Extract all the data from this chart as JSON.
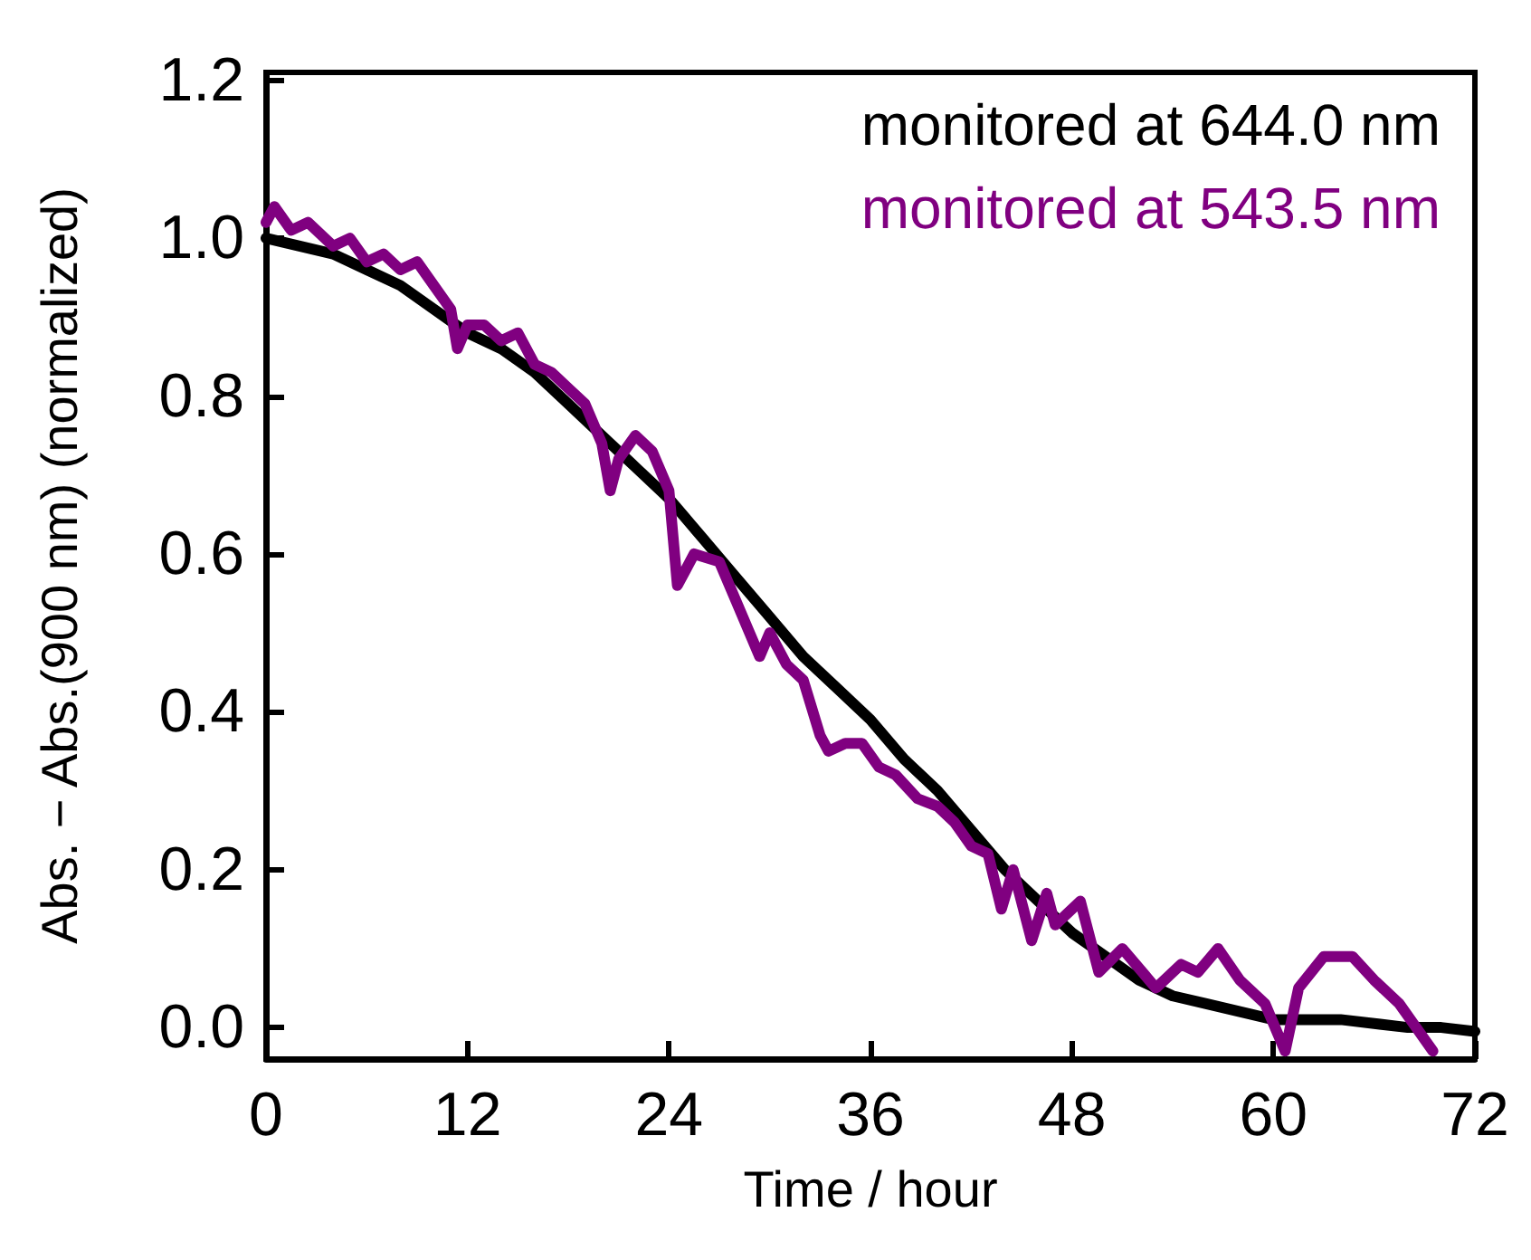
{
  "chart_data": {
    "type": "line",
    "xlabel": "Time / hour",
    "ylabel": "Abs. − Abs.(900 nm) (normalized)",
    "xlim": [
      0,
      72
    ],
    "xticks": [
      0,
      12,
      24,
      36,
      48,
      60,
      72
    ],
    "ylim": [
      -0.04,
      1.21
    ],
    "yticks": [
      {
        "value": 0,
        "label": "0.0"
      },
      {
        "value": 0.2,
        "label": "0.2"
      },
      {
        "value": 0.4,
        "label": "0.4"
      },
      {
        "value": 0.6,
        "label": "0.6"
      },
      {
        "value": 0.8,
        "label": "0.8"
      },
      {
        "value": 1,
        "label": "1.0"
      },
      {
        "value": 1.2,
        "label": "1.2"
      }
    ],
    "legend": "top right",
    "marker": "none",
    "line_style": "solid",
    "grid": false,
    "series": [
      {
        "name": "monitored at 644.0 nm",
        "color": "#000000",
        "x": [
          0,
          2,
          4,
          6,
          8,
          10,
          12,
          14,
          16,
          18,
          20,
          22,
          24,
          26,
          28,
          30,
          32,
          34,
          36,
          38,
          40,
          42,
          44,
          46,
          48,
          50,
          52,
          54,
          56,
          58,
          60,
          62,
          64,
          66,
          68,
          70,
          72
        ],
        "values": [
          1.0,
          0.99,
          0.98,
          0.96,
          0.94,
          0.91,
          0.88,
          0.86,
          0.83,
          0.79,
          0.75,
          0.71,
          0.67,
          0.62,
          0.57,
          0.52,
          0.47,
          0.43,
          0.39,
          0.34,
          0.3,
          0.25,
          0.2,
          0.16,
          0.12,
          0.09,
          0.06,
          0.04,
          0.03,
          0.02,
          0.01,
          0.01,
          0.01,
          0.005,
          0.0,
          0.0,
          -0.005
        ]
      },
      {
        "name": "monitored at 543.5 nm",
        "color": "#800080",
        "x": [
          0,
          0.5,
          1.5,
          2.5,
          4,
          5,
          6,
          7,
          8,
          9,
          10,
          11,
          11.4,
          12,
          13,
          14,
          15,
          16,
          17,
          18,
          19,
          20,
          20.5,
          21,
          22,
          23,
          24,
          24.5,
          25.5,
          27,
          28,
          29.4,
          30,
          31,
          32,
          33,
          33.5,
          34.5,
          35.5,
          36.5,
          37.5,
          38.8,
          40,
          41,
          42,
          43,
          43.8,
          44.5,
          45.6,
          46.5,
          47,
          48.5,
          49.6,
          51,
          53,
          54.5,
          55.5,
          56.7,
          58,
          59.5,
          60.7,
          61.5,
          63,
          64.7,
          66,
          67.5,
          68.5,
          69.5
        ],
        "values": [
          1.02,
          1.04,
          1.01,
          1.02,
          0.99,
          1.0,
          0.97,
          0.98,
          0.96,
          0.97,
          0.94,
          0.91,
          0.86,
          0.89,
          0.89,
          0.87,
          0.88,
          0.84,
          0.83,
          0.81,
          0.79,
          0.74,
          0.68,
          0.72,
          0.75,
          0.73,
          0.68,
          0.56,
          0.6,
          0.59,
          0.54,
          0.47,
          0.5,
          0.46,
          0.44,
          0.37,
          0.35,
          0.36,
          0.36,
          0.33,
          0.32,
          0.29,
          0.28,
          0.26,
          0.23,
          0.22,
          0.15,
          0.2,
          0.11,
          0.17,
          0.13,
          0.16,
          0.07,
          0.1,
          0.05,
          0.08,
          0.07,
          0.1,
          0.06,
          0.03,
          -0.03,
          0.05,
          0.09,
          0.09,
          0.06,
          0.03,
          0.0,
          -0.03
        ]
      }
    ]
  }
}
